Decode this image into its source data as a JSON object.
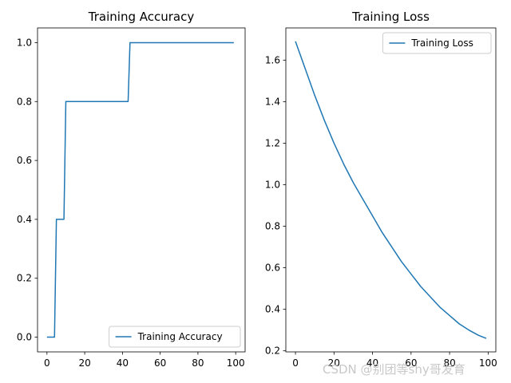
{
  "colors": {
    "line": "#1f77b4",
    "axes": "#000000",
    "background": "#ffffff",
    "watermark": "#c8c8c8"
  },
  "watermark": "CSDN @别团等shy哥发育",
  "chart_data": [
    {
      "type": "line",
      "title": "Training Accuracy",
      "xlabel": "",
      "ylabel": "",
      "xlim": [
        -5,
        105
      ],
      "ylim": [
        -0.05,
        1.05
      ],
      "xticks": [
        0,
        20,
        40,
        60,
        80,
        100
      ],
      "yticks": [
        0.0,
        0.2,
        0.4,
        0.6,
        0.8,
        1.0
      ],
      "xtick_labels": [
        "0",
        "20",
        "40",
        "60",
        "80",
        "100"
      ],
      "ytick_labels": [
        "0.0",
        "0.2",
        "0.4",
        "0.6",
        "0.8",
        "1.0"
      ],
      "grid": false,
      "legend_position": "lower-right",
      "series": [
        {
          "name": "Training Accuracy",
          "x": [
            0,
            4,
            5,
            9,
            10,
            43,
            44,
            99
          ],
          "y": [
            0.0,
            0.0,
            0.4,
            0.4,
            0.8,
            0.8,
            1.0,
            1.0
          ]
        }
      ]
    },
    {
      "type": "line",
      "title": "Training Loss",
      "xlabel": "",
      "ylabel": "",
      "xlim": [
        -5,
        104
      ],
      "ylim": [
        0.195,
        1.755
      ],
      "xticks": [
        0,
        20,
        40,
        60,
        80,
        100
      ],
      "yticks": [
        0.2,
        0.4,
        0.6,
        0.8,
        1.0,
        1.2,
        1.4,
        1.6
      ],
      "xtick_labels": [
        "0",
        "20",
        "40",
        "60",
        "80",
        "100"
      ],
      "ytick_labels": [
        "0.2",
        "0.4",
        "0.6",
        "0.8",
        "1.0",
        "1.2",
        "1.4",
        "1.6"
      ],
      "grid": false,
      "legend_position": "upper-right",
      "series": [
        {
          "name": "Training Loss",
          "x": [
            0,
            5,
            10,
            15,
            20,
            25,
            30,
            35,
            40,
            45,
            50,
            55,
            60,
            65,
            70,
            75,
            80,
            85,
            90,
            95,
            99
          ],
          "y": [
            1.69,
            1.56,
            1.43,
            1.31,
            1.2,
            1.1,
            1.01,
            0.93,
            0.85,
            0.77,
            0.7,
            0.63,
            0.57,
            0.51,
            0.46,
            0.41,
            0.37,
            0.33,
            0.3,
            0.275,
            0.26
          ]
        }
      ]
    }
  ]
}
